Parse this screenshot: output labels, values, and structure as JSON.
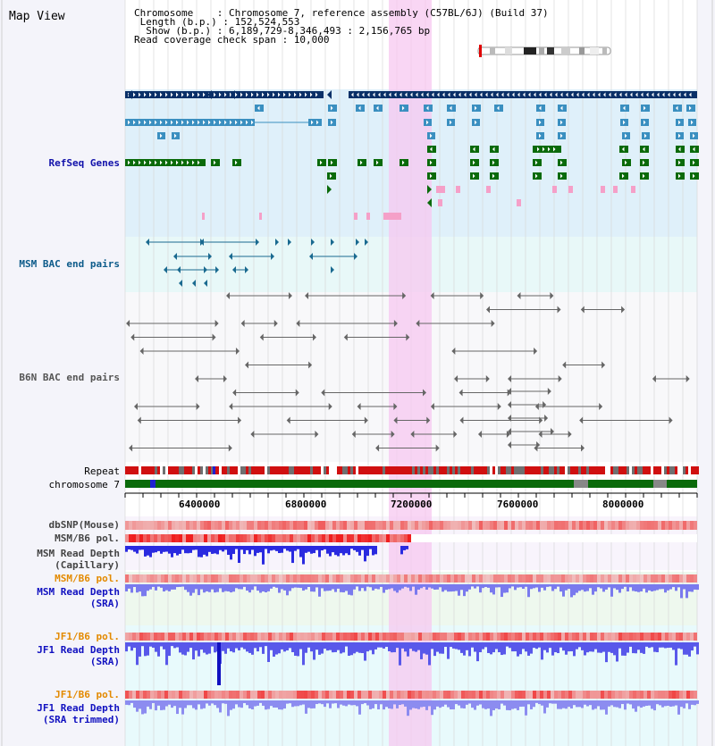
{
  "header": {
    "title": "Map View",
    "chromosome_line": "Chromosome    : Chromosome 7, reference assembly (C57BL/6J) (Build 37)",
    "length_line": " Length (b.p.) : 152,524,553",
    "show_line": "  Show (b.p.) : 6,189,729-8,346,493 : 2,156,765 bp",
    "coverage_line": "Read coverage check span : 10,000"
  },
  "tracks": {
    "refseq": "RefSeq Genes",
    "msm_bac": "MSM BAC end pairs",
    "b6n_bac": "B6N BAC end pairs",
    "repeat": "Repeat",
    "chromosome": "chromosome 7",
    "dbsnp": "dbSNP(Mouse)",
    "msm_b6_pol": "MSM/B6 pol.",
    "msm_depth_cap_1": "MSM Read Depth",
    "msm_depth_cap_2": "(Capillary)",
    "msm_b6_pol_sra": "MSM/B6 pol.",
    "msm_depth_sra_1": "MSM Read Depth",
    "msm_depth_sra_2": "(SRA)",
    "jf1_b6_pol": "JF1/B6 pol.",
    "jf1_depth_1": "JF1 Read Depth",
    "jf1_depth_2": "(SRA)",
    "jf1_b6_pol_trim": "JF1/B6 pol.",
    "jf1_trim_1": "JF1 Read Depth",
    "jf1_trim_2": "(SRA trimmed)"
  },
  "axis": {
    "ticks": [
      "6400000",
      "6800000",
      "7200000",
      "7600000",
      "8000000"
    ]
  },
  "colors": {
    "refseq_label": "#1111aa",
    "msm_bac_label": "#0d5b8a",
    "orange_label": "#e38a00",
    "blue_label": "#1010c0",
    "highlight": "#f7c8f0",
    "dark_gene": "#0a3068",
    "mid_gene": "#3a8fc0",
    "green_gene": "#0a6a0a",
    "pink_gene": "#f5a0c8"
  }
}
